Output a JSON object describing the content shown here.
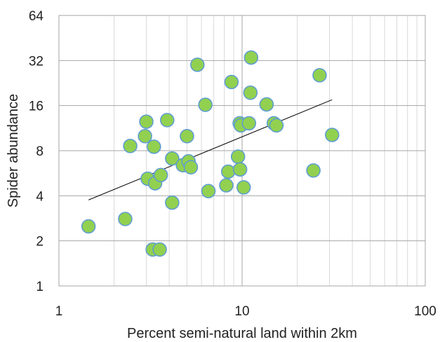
{
  "chart_data": {
    "type": "scatter",
    "xlabel": "Percent semi-natural land within 2km",
    "ylabel": "Spider abundance",
    "x_scale": "log",
    "y_scale": "log",
    "xlim": [
      1,
      100
    ],
    "ylim": [
      1,
      64
    ],
    "x_ticks": [
      1,
      10,
      100
    ],
    "y_ticks": [
      1,
      2,
      4,
      8,
      16,
      32,
      64
    ],
    "x_tick_labels": [
      "1",
      "10",
      "100"
    ],
    "y_tick_labels": [
      "1",
      "2",
      "4",
      "8",
      "16",
      "32",
      "64"
    ],
    "grid": true,
    "legend": "none",
    "marker_fill": "#92d050",
    "marker_edge": "#5b9bd5",
    "trendline_color": "#000000",
    "points": [
      {
        "x": 1.45,
        "y": 2.5
      },
      {
        "x": 2.3,
        "y": 2.8
      },
      {
        "x": 2.45,
        "y": 8.6
      },
      {
        "x": 2.95,
        "y": 10.0
      },
      {
        "x": 3.0,
        "y": 12.5
      },
      {
        "x": 3.05,
        "y": 5.2
      },
      {
        "x": 3.25,
        "y": 1.75
      },
      {
        "x": 3.3,
        "y": 8.5
      },
      {
        "x": 3.35,
        "y": 4.85
      },
      {
        "x": 3.55,
        "y": 1.75
      },
      {
        "x": 3.6,
        "y": 5.5
      },
      {
        "x": 3.9,
        "y": 12.8
      },
      {
        "x": 4.15,
        "y": 7.1
      },
      {
        "x": 4.15,
        "y": 3.6
      },
      {
        "x": 4.75,
        "y": 6.4
      },
      {
        "x": 5.0,
        "y": 10.0
      },
      {
        "x": 5.1,
        "y": 6.8
      },
      {
        "x": 5.25,
        "y": 6.2
      },
      {
        "x": 5.7,
        "y": 30.0
      },
      {
        "x": 6.3,
        "y": 16.2
      },
      {
        "x": 6.55,
        "y": 4.3
      },
      {
        "x": 8.2,
        "y": 4.7
      },
      {
        "x": 8.4,
        "y": 5.8
      },
      {
        "x": 8.75,
        "y": 23.0
      },
      {
        "x": 9.5,
        "y": 7.3
      },
      {
        "x": 9.7,
        "y": 12.2
      },
      {
        "x": 9.75,
        "y": 6.0
      },
      {
        "x": 9.85,
        "y": 11.8
      },
      {
        "x": 10.2,
        "y": 4.55
      },
      {
        "x": 10.9,
        "y": 12.2
      },
      {
        "x": 11.1,
        "y": 19.5
      },
      {
        "x": 11.2,
        "y": 33.5
      },
      {
        "x": 13.6,
        "y": 16.3
      },
      {
        "x": 14.9,
        "y": 12.2
      },
      {
        "x": 15.4,
        "y": 11.8
      },
      {
        "x": 24.5,
        "y": 5.9
      },
      {
        "x": 26.5,
        "y": 25.5
      },
      {
        "x": 31.0,
        "y": 10.2
      }
    ],
    "trendline": {
      "x": [
        1.45,
        31.0
      ],
      "y": [
        3.75,
        17.5
      ]
    }
  }
}
